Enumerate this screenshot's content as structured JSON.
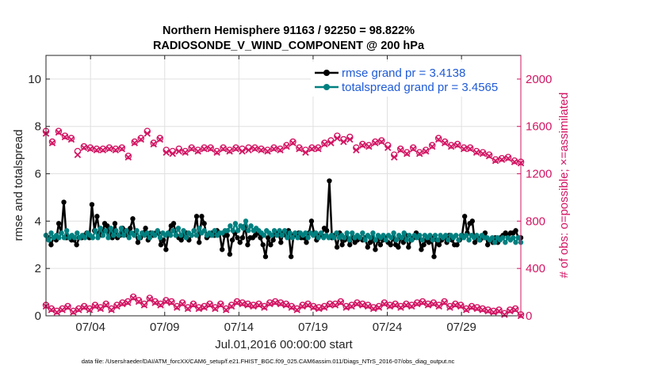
{
  "chart_data": {
    "type": "line",
    "title": "Northern Hemisphere 91163 / 92250 = 98.822%",
    "subtitle": "RADIOSONDE_V_WIND_COMPONENT @ 200 hPa",
    "xlabel": "Jul.01,2016 00:00:00 start",
    "ylabel": "rmse and totalspread",
    "ylabel_right": "# of obs: o=possible; ×=assimilated",
    "xlim": [
      1,
      33
    ],
    "ylim": [
      0,
      11
    ],
    "ylim_right": [
      0,
      2200
    ],
    "xticks": [
      {
        "x": 4,
        "label": "07/04"
      },
      {
        "x": 9,
        "label": "07/09"
      },
      {
        "x": 14,
        "label": "07/14"
      },
      {
        "x": 19,
        "label": "07/19"
      },
      {
        "x": 24,
        "label": "07/24"
      },
      {
        "x": 29,
        "label": "07/29"
      }
    ],
    "yticks": [
      0,
      2,
      4,
      6,
      8,
      10
    ],
    "yticks_right": [
      0,
      400,
      800,
      1200,
      1600,
      2000
    ],
    "grid": true,
    "legend_position": "top-right",
    "footnote": "data file: /Users/raeder/DAI/ATM_forcXX/CAM6_setup/f.e21.FHIST_BGC.f09_025.CAM6assim.011/Diags_NTrS_2016-07/obs_diag_output.nc",
    "series": [
      {
        "name": "rmse grand pr = 3.4138",
        "axis": "left",
        "color": "#000000",
        "marker": "filled-circle",
        "values": [
          3.4,
          3.3,
          3.0,
          3.3,
          3.2,
          3.9,
          3.5,
          4.8,
          3.3,
          3.3,
          3.2,
          3.2,
          3.0,
          3.3,
          3.3,
          3.4,
          3.5,
          3.3,
          4.7,
          3.6,
          4.2,
          3.5,
          3.4,
          3.9,
          3.8,
          3.5,
          3.3,
          3.9,
          3.3,
          3.4,
          3.7,
          3.6,
          3.4,
          3.7,
          4.1,
          3.5,
          3.1,
          3.3,
          3.5,
          3.7,
          3.2,
          3.5,
          3.4,
          3.5,
          3.5,
          3.0,
          3.2,
          2.8,
          3.5,
          3.8,
          3.9,
          3.4,
          3.3,
          3.2,
          3.4,
          3.5,
          3.2,
          3.4,
          3.6,
          4.2,
          3.1,
          4.2,
          3.9,
          3.3,
          3.4,
          3.5,
          3.4,
          3.6,
          3.5,
          2.8,
          3.4,
          3.4,
          2.6,
          3.2,
          3.5,
          3.3,
          3.1,
          3.3,
          3.8,
          3.0,
          3.3,
          3.3,
          3.4,
          3.5,
          3.3,
          3.0,
          2.5,
          3.3,
          3.0,
          3.2,
          3.5,
          3.5,
          3.1,
          3.5,
          3.4,
          3.6,
          2.5,
          3.4,
          3.4,
          3.5,
          3.3,
          3.3,
          3.1,
          3.5,
          4.0,
          3.5,
          3.2,
          3.4,
          3.4,
          3.7,
          3.6,
          5.7,
          3.3,
          3.4,
          2.9,
          3.5,
          3.0,
          3.2,
          3.3,
          3.0,
          3.3,
          3.1,
          3.2,
          3.3,
          3.2,
          3.3,
          2.9,
          3.1,
          3.3,
          2.8,
          3.2,
          3.0,
          3.2,
          3.3,
          3.1,
          3.0,
          3.3,
          3.0,
          2.9,
          3.3,
          3.1,
          3.4,
          2.9,
          3.2,
          3.3,
          3.5,
          3.4,
          2.8,
          3.0,
          3.2,
          3.1,
          3.3,
          2.5,
          3.2,
          3.0,
          3.2,
          3.3,
          3.1,
          3.4,
          3.2,
          3.0,
          3.0,
          3.2,
          3.4,
          4.2,
          3.5,
          3.9,
          4.0,
          3.1,
          3.3,
          3.2,
          3.3,
          3.5,
          3.0,
          3.2,
          3.1,
          3.3,
          3.1,
          3.3,
          3.4,
          3.5,
          3.4,
          3.5,
          3.5,
          3.6,
          3.3,
          3.3
        ]
      },
      {
        "name": "totalspread grand pr = 3.4565",
        "axis": "left",
        "color": "#008080",
        "marker": "filled-circle",
        "values": [
          3.4,
          3.2,
          3.5,
          3.3,
          3.4,
          3.3,
          3.5,
          3.3,
          3.6,
          3.3,
          3.4,
          3.3,
          3.5,
          3.3,
          3.4,
          3.3,
          3.5,
          3.4,
          3.3,
          3.6,
          3.3,
          3.7,
          3.4,
          3.6,
          3.3,
          3.7,
          3.4,
          3.6,
          3.4,
          3.7,
          3.4,
          3.6,
          3.3,
          3.5,
          3.4,
          3.6,
          3.3,
          3.5,
          3.4,
          3.5,
          3.3,
          3.5,
          3.4,
          3.6,
          3.3,
          3.5,
          3.4,
          3.5,
          3.4,
          3.6,
          3.4,
          3.7,
          3.4,
          3.6,
          3.3,
          3.5,
          3.4,
          3.6,
          3.4,
          3.7,
          3.5,
          3.6,
          3.4,
          3.5,
          3.4,
          3.6,
          3.4,
          3.5,
          3.5,
          3.6,
          3.6,
          3.8,
          3.6,
          3.9,
          3.6,
          3.8,
          3.7,
          4.0,
          3.6,
          3.8,
          3.6,
          3.7,
          3.6,
          3.5,
          3.4,
          3.6,
          3.5,
          3.4,
          3.6,
          3.4,
          3.6,
          3.4,
          3.6,
          3.3,
          3.5,
          3.3,
          3.5,
          3.3,
          3.5,
          3.4,
          3.5,
          3.3,
          3.5,
          3.4,
          3.5,
          3.3,
          3.5,
          3.3,
          3.4,
          3.3,
          3.4,
          3.3,
          3.5,
          3.3,
          3.4,
          3.3,
          3.5,
          3.2,
          3.5,
          3.3,
          3.4,
          3.3,
          3.5,
          3.2,
          3.4,
          3.3,
          3.5,
          3.2,
          3.4,
          3.3,
          3.4,
          3.2,
          3.4,
          3.3,
          3.5,
          3.2,
          3.4,
          3.3,
          3.5,
          3.2,
          3.4,
          3.2,
          3.4,
          3.3,
          3.4,
          3.2,
          3.4,
          3.3,
          3.4,
          3.2,
          3.4,
          3.2,
          3.4,
          3.3,
          3.4,
          3.2,
          3.4,
          3.3,
          3.4,
          3.2,
          3.4,
          3.3,
          3.4,
          3.2,
          3.4,
          3.3,
          3.4,
          3.2,
          3.4,
          3.3,
          3.3,
          3.2,
          3.3,
          3.1,
          3.3,
          3.2,
          3.3,
          3.1,
          3.3,
          3.2,
          3.3,
          3.1,
          3.3,
          3.1
        ]
      },
      {
        "name": "obs possible (upper)",
        "axis": "right",
        "color": "#d21563",
        "marker": "open-circle",
        "values": [
          1560,
          1470,
          1560,
          1520,
          1500,
          1390,
          1430,
          1420,
          1410,
          1410,
          1420,
          1410,
          1420,
          1350,
          1470,
          1500,
          1560,
          1460,
          1500,
          1400,
          1390,
          1410,
          1390,
          1420,
          1400,
          1420,
          1420,
          1390,
          1420,
          1400,
          1420,
          1410,
          1420,
          1420,
          1410,
          1400,
          1420,
          1410,
          1440,
          1470,
          1420,
          1400,
          1420,
          1420,
          1460,
          1480,
          1520,
          1490,
          1510,
          1420,
          1450,
          1440,
          1470,
          1480,
          1440,
          1360,
          1410,
          1380,
          1420,
          1380,
          1400,
          1440,
          1500,
          1470,
          1440,
          1450,
          1420,
          1420,
          1390,
          1380,
          1360,
          1320,
          1330,
          1340,
          1310,
          1300
        ]
      },
      {
        "name": "obs assimilated (upper)",
        "axis": "right",
        "color": "#d21563",
        "marker": "cross",
        "values": [
          1540,
          1460,
          1550,
          1510,
          1490,
          1360,
          1420,
          1410,
          1400,
          1400,
          1410,
          1400,
          1410,
          1340,
          1460,
          1490,
          1540,
          1450,
          1490,
          1380,
          1370,
          1390,
          1380,
          1410,
          1390,
          1410,
          1410,
          1380,
          1410,
          1390,
          1410,
          1390,
          1400,
          1410,
          1400,
          1390,
          1410,
          1400,
          1430,
          1460,
          1410,
          1380,
          1410,
          1410,
          1450,
          1460,
          1500,
          1470,
          1490,
          1400,
          1440,
          1430,
          1460,
          1470,
          1420,
          1340,
          1400,
          1370,
          1410,
          1370,
          1390,
          1430,
          1490,
          1460,
          1430,
          1440,
          1410,
          1410,
          1380,
          1370,
          1350,
          1310,
          1320,
          1330,
          1300,
          1290
        ]
      },
      {
        "name": "obs possible (lower)",
        "axis": "right",
        "color": "#d21563",
        "marker": "open-circle",
        "values": [
          90,
          60,
          40,
          60,
          80,
          40,
          60,
          80,
          60,
          90,
          70,
          100,
          60,
          90,
          110,
          120,
          160,
          130,
          100,
          150,
          120,
          100,
          130,
          120,
          80,
          110,
          70,
          100,
          70,
          80,
          100,
          70,
          100,
          60,
          90,
          120,
          110,
          100,
          90,
          100,
          80,
          110,
          120,
          110,
          100,
          80,
          60,
          90,
          100,
          80,
          70,
          80,
          100,
          100,
          120,
          80,
          90,
          110,
          100,
          90,
          70,
          80,
          110,
          90,
          100,
          80,
          100,
          90,
          110,
          120,
          100,
          110,
          90,
          120,
          80,
          100,
          90,
          60,
          80,
          70,
          60,
          50,
          40,
          50,
          20,
          50,
          60,
          10
        ]
      },
      {
        "name": "obs assimilated (lower)",
        "axis": "right",
        "color": "#d21563",
        "marker": "cross",
        "values": [
          80,
          50,
          30,
          50,
          70,
          30,
          50,
          70,
          50,
          80,
          60,
          90,
          50,
          80,
          100,
          110,
          150,
          120,
          90,
          140,
          110,
          90,
          120,
          110,
          70,
          100,
          60,
          90,
          60,
          70,
          90,
          60,
          90,
          50,
          80,
          110,
          100,
          90,
          80,
          90,
          70,
          100,
          110,
          100,
          90,
          70,
          50,
          80,
          90,
          70,
          60,
          70,
          90,
          90,
          110,
          70,
          80,
          100,
          90,
          80,
          60,
          70,
          100,
          80,
          90,
          70,
          90,
          80,
          100,
          110,
          90,
          100,
          80,
          110,
          70,
          90,
          80,
          50,
          70,
          60,
          50,
          40,
          30,
          40,
          10,
          40,
          50,
          0
        ]
      }
    ]
  }
}
